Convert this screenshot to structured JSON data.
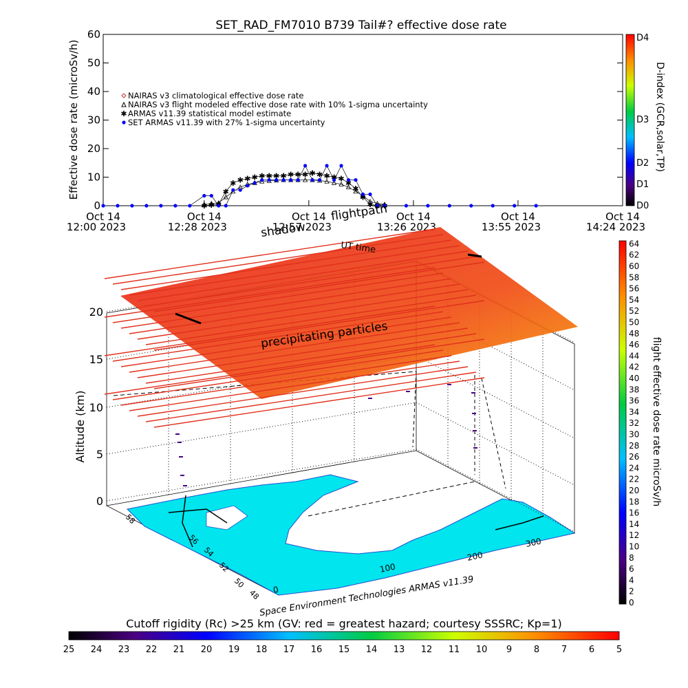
{
  "chart_data": [
    {
      "type": "line",
      "title": "SET_RAD_FM7010   B739 Tail#? effective dose rate",
      "ylabel": "Effective dose rate (microSv/h)",
      "xlabel": "",
      "ylim": [
        0,
        60
      ],
      "yticks": [
        "0",
        "10",
        "20",
        "30",
        "40",
        "50",
        "60"
      ],
      "xlim": [
        0,
        144
      ],
      "xticks": [
        {
          "t": 0,
          "line1": "Oct 14",
          "line2": "12:00 2023"
        },
        {
          "t": 28,
          "line1": "Oct 14",
          "line2": "12:28 2023"
        },
        {
          "t": 57,
          "line1": "Oct 14",
          "line2": "12:57 2023"
        },
        {
          "t": 86,
          "line1": "Oct 14",
          "line2": "13:26 2023"
        },
        {
          "t": 115,
          "line1": "Oct 14",
          "line2": "13:55 2023"
        },
        {
          "t": 144,
          "line1": "Oct 14",
          "line2": "14:24 2023"
        }
      ],
      "legend": [
        {
          "name": "NAIRAS v3 climatological effective dose rate",
          "color": "#cc3333",
          "marker": "diamond"
        },
        {
          "name": "NAIRAS v3 flight modeled effective dose rate with 10% 1-sigma uncertainty",
          "color": "#000000",
          "marker": "triangle"
        },
        {
          "name": "ARMAS v11.39 statistical model estimate",
          "color": "#33cc33",
          "marker": "star"
        },
        {
          "name": "SET ARMAS v11.39 with 27% 1-sigma uncertainty",
          "color": "#0000ff",
          "marker": "dot"
        }
      ],
      "series": [
        {
          "name": "NAIRAS v3 flight modeled effective dose rate with 10% 1-sigma uncertainty",
          "x": [
            28,
            30,
            32,
            34,
            36,
            38,
            40,
            42,
            44,
            46,
            48,
            50,
            52,
            54,
            56,
            58,
            60,
            62,
            64,
            66,
            68,
            70,
            72,
            74,
            76,
            78
          ],
          "y": [
            0.5,
            0.8,
            1,
            3,
            5,
            6.5,
            7.5,
            8,
            8.5,
            8.7,
            8.9,
            9,
            9,
            9,
            9,
            9,
            8.8,
            8.5,
            8,
            7.5,
            6.5,
            5,
            3.5,
            1.5,
            0.8,
            0.5
          ]
        },
        {
          "name": "ARMAS v11.39 statistical model estimate",
          "x": [
            28,
            30,
            32,
            34,
            36,
            38,
            40,
            42,
            44,
            46,
            48,
            50,
            52,
            54,
            56,
            58,
            60,
            62,
            64,
            66,
            68,
            70,
            72,
            74,
            76,
            78
          ],
          "y": [
            0,
            0.3,
            0.5,
            5,
            8,
            9,
            9.5,
            10,
            10.5,
            10.5,
            10.5,
            10.5,
            11,
            11,
            11,
            11.5,
            11,
            10.5,
            10,
            9.5,
            8,
            6,
            3,
            0.5,
            0,
            0
          ]
        },
        {
          "name": "SET ARMAS v11.39 with 27% 1-sigma uncertainty",
          "x": [
            0,
            4,
            8,
            12,
            16,
            20,
            24,
            28,
            30,
            32,
            34,
            36,
            38,
            40,
            42,
            44,
            46,
            48,
            50,
            52,
            54,
            56,
            58,
            60,
            62,
            64,
            66,
            68,
            70,
            72,
            74,
            76,
            78,
            84,
            90,
            96,
            102,
            108,
            114,
            120
          ],
          "y": [
            0,
            0,
            0,
            0,
            0,
            0,
            0,
            3.5,
            3.5,
            0,
            0,
            5.5,
            5.5,
            7,
            8,
            9,
            9,
            9,
            9,
            9,
            9,
            14,
            9,
            9,
            14,
            9,
            14,
            9,
            9,
            4,
            4,
            0,
            0,
            0,
            0,
            0,
            0,
            0,
            0,
            0
          ]
        }
      ],
      "colorbar": {
        "label": "D-index (GCR,solar,TP)",
        "ticks": [
          "D0",
          "D1",
          "D2",
          "D3",
          "D4"
        ]
      }
    },
    {
      "type": "heatmap",
      "annotations": {
        "shadow": "shadow",
        "flightpath": "flightpath",
        "ut_time": "UT time",
        "precip": "precipitating particles",
        "credit": "Space Environment Technologies ARMAS v11.39"
      },
      "zlabel": "Altitude (km)",
      "zticks": [
        "0",
        "5",
        "10",
        "15",
        "20"
      ],
      "lon_ticks": [
        "0",
        "100",
        "200",
        "300"
      ],
      "lat_ticks": [
        "48",
        "50",
        "52",
        "54",
        "56",
        "58"
      ],
      "colorbar": {
        "label": "flight effective dose rate microSv/h",
        "ticks": [
          "0",
          "2",
          "4",
          "6",
          "8",
          "10",
          "12",
          "14",
          "16",
          "18",
          "20",
          "22",
          "24",
          "26",
          "28",
          "30",
          "32",
          "34",
          "36",
          "38",
          "40",
          "42",
          "44",
          "46",
          "48",
          "50",
          "52",
          "54",
          "56",
          "58",
          "60",
          "62",
          "64"
        ]
      },
      "cutoff_bar": {
        "title": "Cutoff rigidity (Rc) >25 km (GV: red = greatest hazard; courtesy SSSRC; Kp=1)",
        "ticks": [
          "25",
          "24",
          "23",
          "22",
          "21",
          "20",
          "19",
          "18",
          "17",
          "16",
          "15",
          "14",
          "13",
          "12",
          "11",
          "10",
          "9",
          "8",
          "7",
          "6",
          "5"
        ]
      }
    }
  ]
}
